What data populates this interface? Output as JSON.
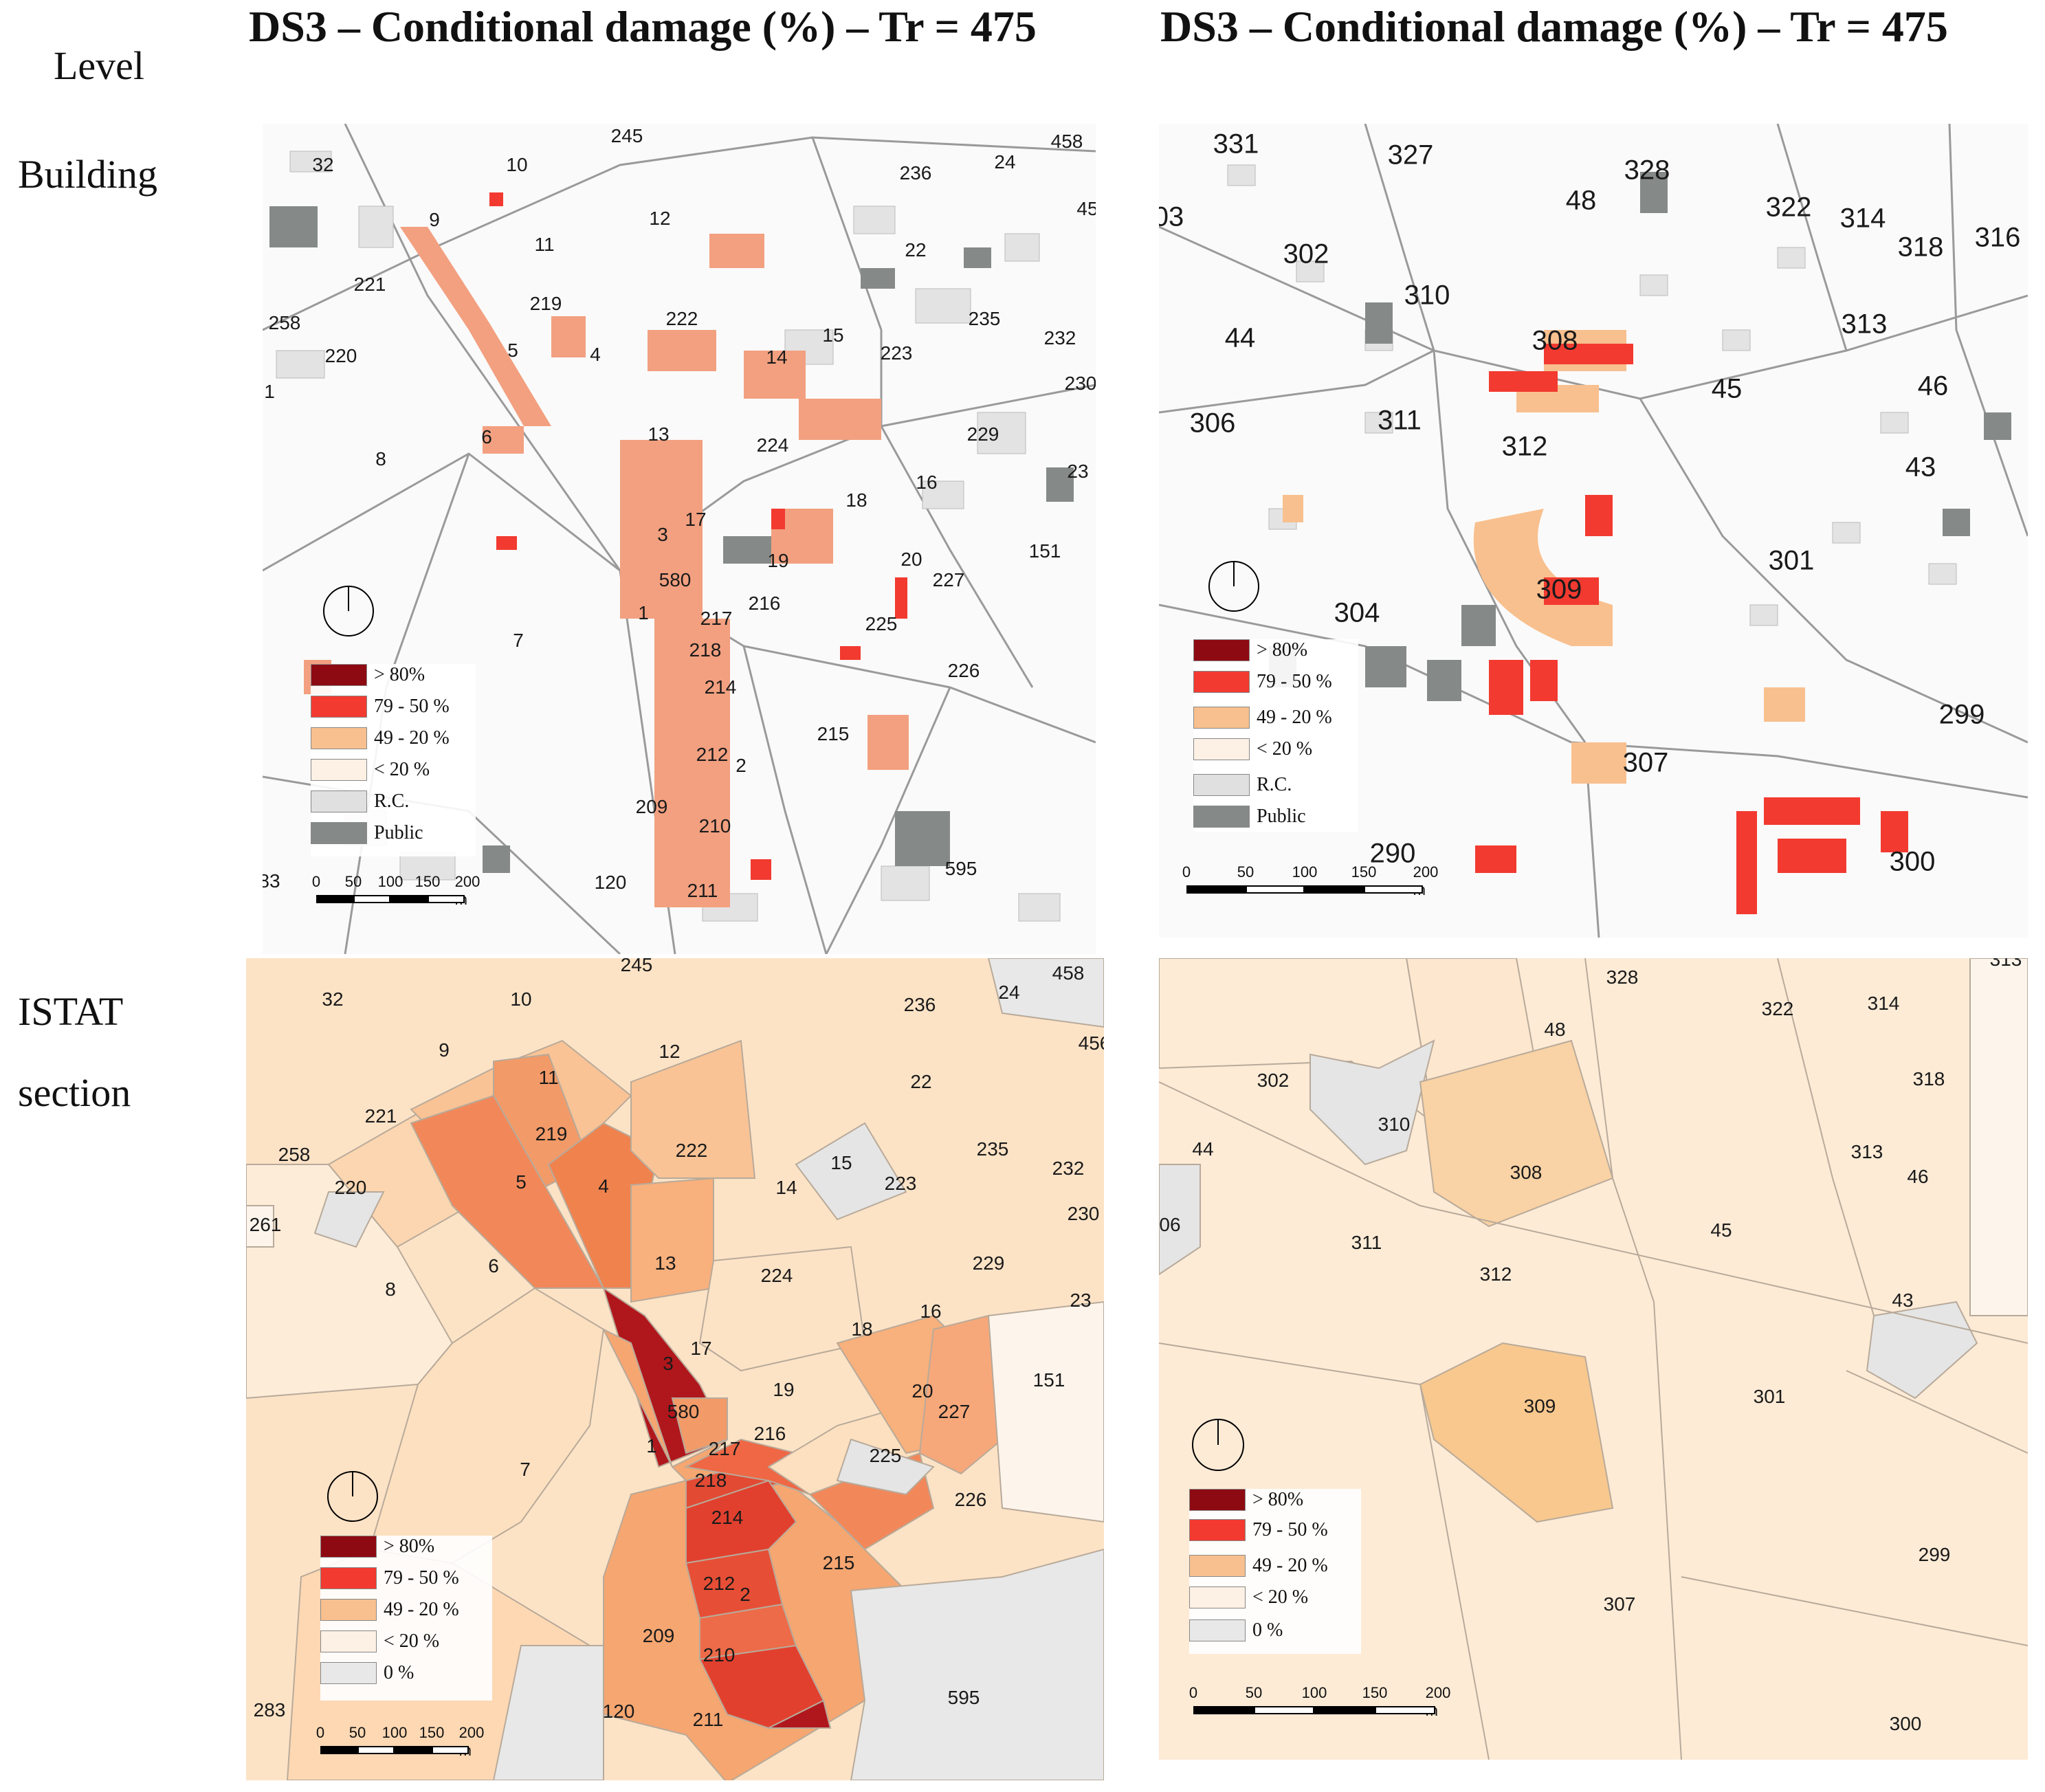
{
  "titles": {
    "left": "DS3 – Conditional damage (%) – Tr = 475",
    "right": "DS3 – Conditional damage (%) – Tr = 475"
  },
  "row_labels": {
    "level": "Level",
    "building": "Building",
    "istat_1": "ISTAT",
    "istat_2": "section"
  },
  "colors": {
    "gt80": "#8e0a12",
    "c79_50": "#f23a30",
    "c49_20": "#f8c08e",
    "lt20": "#fdf0e4",
    "rc": "#e0e0e0",
    "public": "#858a88",
    "zero": "#e8e8e8"
  },
  "legend_building": [
    {
      "label": "> 80%",
      "color": "#8e0a12"
    },
    {
      "label": "79 - 50 %",
      "color": "#f23a30"
    },
    {
      "label": "49 - 20 %",
      "color": "#f8c08e"
    },
    {
      "label": "< 20 %",
      "color": "#fdf0e4"
    },
    {
      "label": "R.C.",
      "color": "#e0e0e0"
    },
    {
      "label": "Public",
      "color": "#858a88"
    }
  ],
  "legend_istat": [
    {
      "label": "> 80%",
      "color": "#8e0a12"
    },
    {
      "label": "79 - 50 %",
      "color": "#f23a30"
    },
    {
      "label": "49 - 20 %",
      "color": "#f8c08e"
    },
    {
      "label": "< 20 %",
      "color": "#fdf0e4"
    },
    {
      "label": "0 %",
      "color": "#e8e8e8"
    }
  ],
  "scale": {
    "ticks": [
      "0",
      "50",
      "100",
      "150",
      "200 m"
    ]
  },
  "maps": {
    "building_left_labels": [
      "32",
      "10",
      "245",
      "458",
      "24",
      "236",
      "9",
      "12",
      "45",
      "11",
      "22",
      "221",
      "219",
      "222",
      "235",
      "258",
      "15",
      "232",
      "220",
      "5",
      "4",
      "14",
      "223",
      "230",
      "1",
      "6",
      "224",
      "229",
      "8",
      "13",
      "16",
      "23",
      "18",
      "17",
      "3",
      "19",
      "151",
      "20",
      "227",
      "580",
      "216",
      "1",
      "217",
      "225",
      "7",
      "218",
      "226",
      "214",
      "215",
      "212",
      "2",
      "209",
      "210",
      "595",
      "83",
      "120",
      "211"
    ],
    "building_right_labels": [
      "331",
      "327",
      "328",
      "48",
      "322",
      "314",
      "318",
      "316",
      "03",
      "302",
      "310",
      "313",
      "44",
      "308",
      "45",
      "46",
      "306",
      "311",
      "312",
      "43",
      "301",
      "309",
      "304",
      "299",
      "307",
      "290",
      "300"
    ],
    "istat_left_labels": [
      "32",
      "10",
      "245",
      "458",
      "24",
      "236",
      "9",
      "12",
      "456",
      "11",
      "22",
      "221",
      "219",
      "222",
      "235",
      "258",
      "232",
      "220",
      "5",
      "4",
      "15",
      "14",
      "223",
      "230",
      "261",
      "6",
      "8",
      "13",
      "224",
      "229",
      "23",
      "16",
      "18",
      "17",
      "3",
      "19",
      "151",
      "20",
      "580",
      "227",
      "216",
      "1",
      "217",
      "225",
      "7",
      "218",
      "226",
      "214",
      "215",
      "212",
      "2",
      "209",
      "210",
      "283",
      "120",
      "211",
      "595"
    ],
    "istat_right_labels": [
      "313",
      "328",
      "322",
      "314",
      "48",
      "318",
      "302",
      "310",
      "44",
      "308",
      "313",
      "46",
      "06",
      "45",
      "311",
      "312",
      "43",
      "309",
      "301",
      "299",
      "307",
      "300"
    ]
  }
}
